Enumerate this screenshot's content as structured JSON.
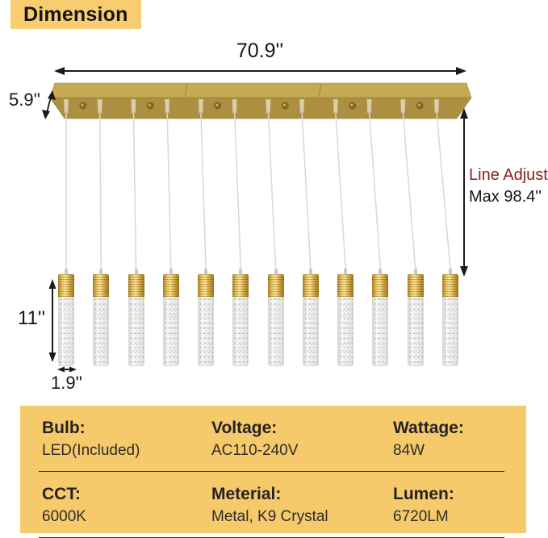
{
  "header": {
    "chip_label": "Dimension",
    "chip_bg": "#F8CD72"
  },
  "diagram": {
    "width_label": "70.9''",
    "canopy_height_label": "5.9''",
    "line_adjust": {
      "line1": "Line Adjust",
      "line2": "Max 98.4''",
      "accent": "#8E1B1E"
    },
    "pendant_height_label": "11''",
    "pendant_width_label": "1.9''",
    "pendant_count": 12,
    "screw_count": 6,
    "colors": {
      "canopy_top": "#C6A855",
      "canopy_front": "#AC8F40",
      "canopy_seam": "#9C8340",
      "cord_grip": "#DACFA6",
      "screw": "#8A6D2C",
      "wire": "#D8D8D8",
      "arrow": "#1A1A1A"
    }
  },
  "spec_table": {
    "bg": "#F6C96B",
    "rows": [
      [
        {
          "label": "Bulb:",
          "value": "LED(Included)"
        },
        {
          "label": "Voltage:",
          "value": "AC110-240V"
        },
        {
          "label": "Wattage:",
          "value": "84W"
        }
      ],
      [
        {
          "label": "CCT:",
          "value": "6000K"
        },
        {
          "label": "Meterial:",
          "value": "Metal, K9 Crystal"
        },
        {
          "label": "Lumen:",
          "value": "6720LM"
        }
      ]
    ]
  }
}
